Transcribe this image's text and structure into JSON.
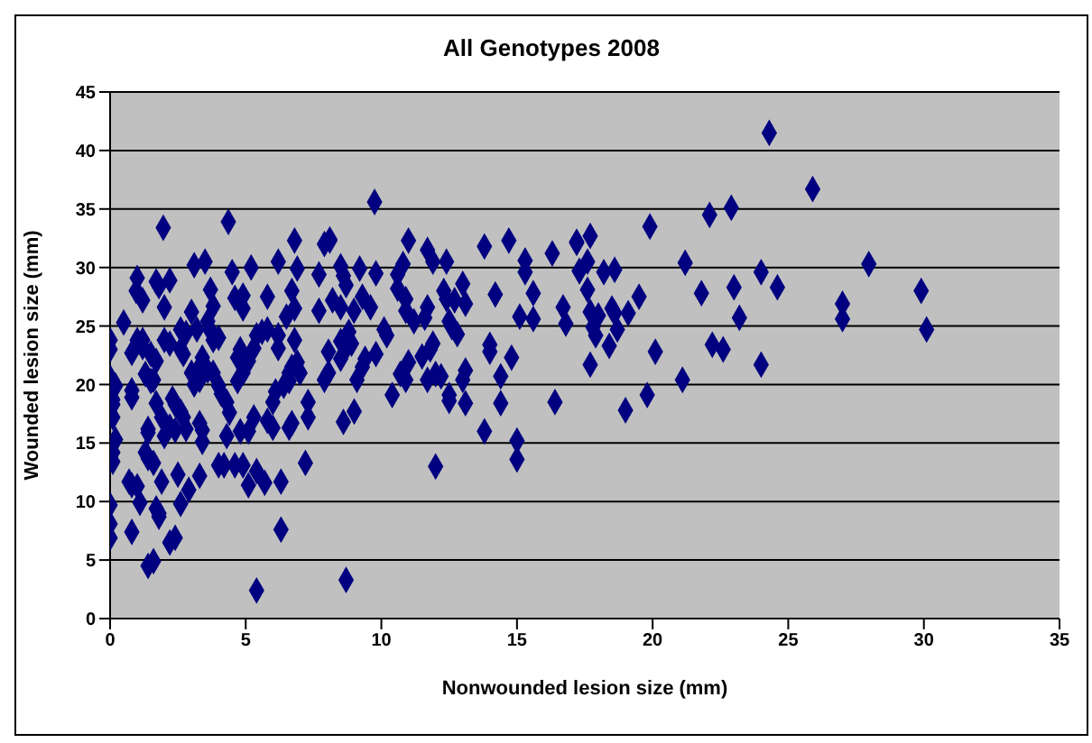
{
  "chart_data": {
    "type": "scatter",
    "title": "All Genotypes 2008",
    "xlabel": "Nonwounded lesion size (mm)",
    "ylabel": "Wounded lesion size (mm)",
    "xlim": [
      0,
      35
    ],
    "xticks": [
      0,
      5,
      10,
      15,
      20,
      25,
      30,
      35
    ],
    "ylim": [
      0,
      45
    ],
    "yticks": [
      0,
      5,
      10,
      15,
      20,
      25,
      30,
      35,
      40,
      45
    ],
    "grid": "y",
    "legend": false,
    "marker": "diamond",
    "series": [
      {
        "color": "#000080",
        "x": [
          1.96,
          4.36,
          6.8,
          7.9,
          8.1,
          1.0,
          0.96,
          1.2,
          1.7,
          1.8,
          2.2,
          2.0,
          3.1,
          3.5,
          4.5,
          5.2,
          6.2,
          6.9,
          7.7,
          3.7,
          3.8,
          4.6,
          4.9,
          4.9,
          5.8,
          6.7,
          6.8,
          6.5,
          7.7,
          0.5,
          0,
          0,
          0.8,
          1.0,
          1.2,
          1.2,
          1.5,
          1.7,
          2.0,
          2.2,
          2.6,
          2.8,
          3.0,
          3.2,
          3.6,
          3.7,
          4.0,
          3.8,
          2.6,
          2.7,
          3.4,
          3.0,
          3.3,
          3.6,
          3.8,
          3.3,
          3.1,
          1.3,
          1.5,
          1.6,
          0.8,
          0.8,
          0,
          0.1,
          0.1,
          0.1,
          0.1,
          0.2,
          0.1,
          0.2,
          1.7,
          1.9,
          2.0,
          1.4,
          1.4,
          2.3,
          2.4,
          2.6,
          2.7,
          2.8,
          2.2,
          2.4,
          3.3,
          3.4,
          3.4,
          4.0,
          4.1,
          4.3,
          4.4,
          4.3,
          4.7,
          4.9,
          4.7,
          5.1,
          4.8,
          5.3,
          5.4,
          5.6,
          5.8,
          6.2,
          6.2,
          6.6,
          6.4,
          6.6,
          6.7,
          6.9,
          7.0,
          6.8,
          6.1,
          6.0,
          5.3,
          5.8,
          4.8,
          5.1,
          6.0,
          6.6,
          6.7,
          7.3,
          7.3,
          7.9,
          0.7,
          0.8,
          1.0,
          1.3,
          1.4,
          1.6,
          1.9,
          2.5,
          2.9,
          3.3,
          2.6,
          1.1,
          0,
          0,
          0,
          0.8,
          1.7,
          1.8,
          1.8,
          2.2,
          2.4,
          1.4,
          1.6,
          4.2,
          4.6,
          4.9,
          4.0,
          5.1,
          5.4,
          5.7,
          6.3,
          7.2,
          6.3,
          5.4,
          9.75,
          8.1,
          11.0,
          11.7,
          11.9,
          12.4,
          13.8,
          14.7,
          15.3,
          15.3,
          16.3,
          17.2,
          17.3,
          8.5,
          8.6,
          8.7,
          9.2,
          9.8,
          10.6,
          10.6,
          10.8,
          8.2,
          8.5,
          8.99,
          9.3,
          9.6,
          10.9,
          10.9,
          12.3,
          12.4,
          12.7,
          13.0,
          13.1,
          14.2,
          15.6,
          15.1,
          15.6,
          16.7,
          16.8,
          10.1,
          10.2,
          11.2,
          11.6,
          11.7,
          12.5,
          12.6,
          12.8,
          8.5,
          8.7,
          8.9,
          8.5,
          8.8,
          8.05,
          9.1,
          9.3,
          9.4,
          9.8,
          8.05,
          11.0,
          10.7,
          10.9,
          11.5,
          11.8,
          11.9,
          12.0,
          12.2,
          11.7,
          13.0,
          13.1,
          14.0,
          14.0,
          14.4,
          14.8,
          10.4,
          12.5,
          12.5,
          13.1,
          14.4,
          16.4,
          9.0,
          8.6,
          13.8,
          15.0,
          15.0,
          12.0,
          8.7,
          24.3,
          25.9,
          22.9,
          22.1,
          19.9,
          17.2,
          17.7,
          17.6,
          17.3,
          18.2,
          18.6,
          21.2,
          24.0,
          24.6,
          23.0,
          21.8,
          19.5,
          17.6,
          17.7,
          18.0,
          18.5,
          18.6,
          19.1,
          17.8,
          17.9,
          18.7,
          18.4,
          17.7,
          20.1,
          22.2,
          22.6,
          23.2,
          24.0,
          27.0,
          27.0,
          21.1,
          19.8,
          19.0,
          27.97,
          29.9,
          30.1
        ],
        "values": [
          33.4,
          33.9,
          32.3,
          32.0,
          32.4,
          29.1,
          28.0,
          27.2,
          28.8,
          28.4,
          28.9,
          26.6,
          30.2,
          30.5,
          29.6,
          30.0,
          30.5,
          29.9,
          29.4,
          28.1,
          26.7,
          27.4,
          27.6,
          26.5,
          27.5,
          28.0,
          26.5,
          25.8,
          26.3,
          25.3,
          23.8,
          23.0,
          22.7,
          23.8,
          23.8,
          23.2,
          22.6,
          22.0,
          23.8,
          23.5,
          24.7,
          24.4,
          26.2,
          24.7,
          25.4,
          24.6,
          24.0,
          23.8,
          23.0,
          22.6,
          22.3,
          21.0,
          21.5,
          21.2,
          21.0,
          20.4,
          20.0,
          20.9,
          20.3,
          20.4,
          19.5,
          18.9,
          20.6,
          18.7,
          17.2,
          14.2,
          13.4,
          19.9,
          18.3,
          15.3,
          18.4,
          17.2,
          15.6,
          16.2,
          15.9,
          18.8,
          18.3,
          17.7,
          17.2,
          16.2,
          16.4,
          16.1,
          16.7,
          16.1,
          15.1,
          19.9,
          19.2,
          18.5,
          17.6,
          15.6,
          20.3,
          21.0,
          22.3,
          22.0,
          23.0,
          23.1,
          24.2,
          24.5,
          24.7,
          23.1,
          24.2,
          20.3,
          19.9,
          21.0,
          21.5,
          21.9,
          21.0,
          23.8,
          19.4,
          18.5,
          17.2,
          16.9,
          16.0,
          16.0,
          16.3,
          16.3,
          16.7,
          18.5,
          17.2,
          20.4,
          11.7,
          11.4,
          11.3,
          14.2,
          13.7,
          13.3,
          11.7,
          12.3,
          11.0,
          12.2,
          9.8,
          9.9,
          9.7,
          8.1,
          6.9,
          7.4,
          9.4,
          8.7,
          9.0,
          6.5,
          6.9,
          4.5,
          4.9,
          13.1,
          13.1,
          13.1,
          13.1,
          11.4,
          12.6,
          11.6,
          11.7,
          13.3,
          7.6,
          2.4,
          35.6,
          32.3,
          32.3,
          31.5,
          30.5,
          30.5,
          31.8,
          32.3,
          30.6,
          29.6,
          31.2,
          32.1,
          29.7,
          30.1,
          29.3,
          28.5,
          29.9,
          29.5,
          29.4,
          28.2,
          30.3,
          27.2,
          26.6,
          26.3,
          27.5,
          26.6,
          27.3,
          26.3,
          28.0,
          27.3,
          27.2,
          28.6,
          26.9,
          27.7,
          27.8,
          25.8,
          25.6,
          26.6,
          25.2,
          24.7,
          24.2,
          25.4,
          25.7,
          26.6,
          25.4,
          24.9,
          24.3,
          23.7,
          23.1,
          23.5,
          22.2,
          24.5,
          21.0,
          20.4,
          21.5,
          22.2,
          22.6,
          22.8,
          21.9,
          20.9,
          20.4,
          22.4,
          23.0,
          23.5,
          20.9,
          20.7,
          20.4,
          20.4,
          21.2,
          23.4,
          22.8,
          20.7,
          22.3,
          19.1,
          19.1,
          18.6,
          18.4,
          18.4,
          18.5,
          17.7,
          16.8,
          16.0,
          15.2,
          13.6,
          13.0,
          3.3,
          41.5,
          36.7,
          35.1,
          34.5,
          33.5,
          32.2,
          32.7,
          30.5,
          29.7,
          29.6,
          29.8,
          30.4,
          29.6,
          28.3,
          28.3,
          27.8,
          27.5,
          28.1,
          26.2,
          25.9,
          26.5,
          26.1,
          26.1,
          24.9,
          24.2,
          24.7,
          23.3,
          21.7,
          22.8,
          23.4,
          23.0,
          25.7,
          21.7,
          26.9,
          25.6,
          20.4,
          19.1,
          17.8,
          30.3,
          28.0,
          24.7
        ]
      }
    ]
  }
}
